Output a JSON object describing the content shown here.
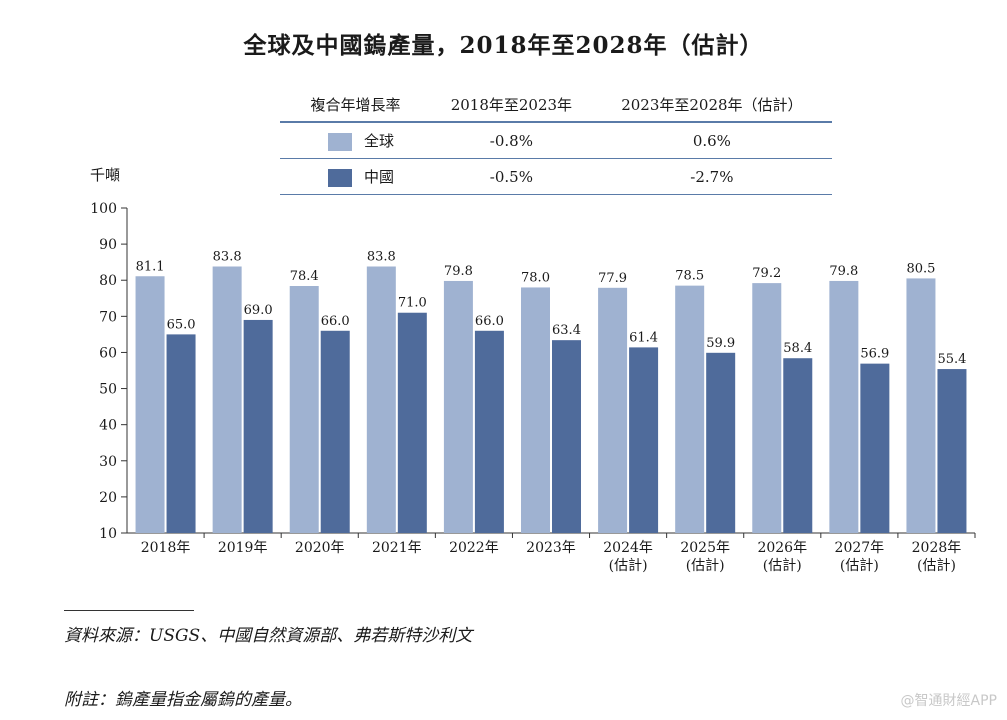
{
  "title": "全球及中國鎢產量，2018年至2028年（估計）",
  "cagr_table": {
    "header": [
      "複合年增長率",
      "2018年至2023年",
      "2023年至2028年（估計）"
    ],
    "rows": [
      {
        "name": "全球",
        "color": "#9fb2d1",
        "v1": "-0.8%",
        "v2": "0.6%"
      },
      {
        "name": "中國",
        "color": "#4f6b9b",
        "v1": "-0.5%",
        "v2": "-2.7%"
      }
    ]
  },
  "chart_data": {
    "type": "bar",
    "ylabel": "千噸",
    "ylim": [
      10,
      100
    ],
    "yticks": [
      10,
      20,
      30,
      40,
      50,
      60,
      70,
      80,
      90,
      100
    ],
    "categories": [
      [
        "2018年"
      ],
      [
        "2019年"
      ],
      [
        "2020年"
      ],
      [
        "2021年"
      ],
      [
        "2022年"
      ],
      [
        "2023年"
      ],
      [
        "2024年",
        "(估計)"
      ],
      [
        "2025年",
        "(估計)"
      ],
      [
        "2026年",
        "(估計)"
      ],
      [
        "2027年",
        "(估計)"
      ],
      [
        "2028年",
        "(估計)"
      ]
    ],
    "series": [
      {
        "name": "全球",
        "color": "#9fb2d1",
        "values": [
          81.1,
          83.8,
          78.4,
          83.8,
          79.8,
          78.0,
          77.9,
          78.5,
          79.2,
          79.8,
          80.5
        ]
      },
      {
        "name": "中國",
        "color": "#4f6b9b",
        "values": [
          65.0,
          69.0,
          66.0,
          71.0,
          66.0,
          63.4,
          61.4,
          59.9,
          58.4,
          56.9,
          55.4
        ]
      }
    ]
  },
  "source": "資料來源：USGS、中國自然資源部、弗若斯特沙利文",
  "note": "附註：鎢產量指金屬鎢的產量。",
  "watermark": "@智通財經APP"
}
